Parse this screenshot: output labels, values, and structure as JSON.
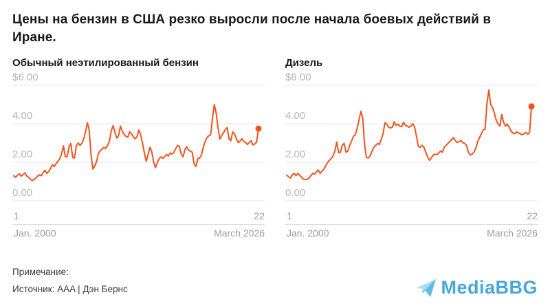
{
  "header": {
    "title": "Цены на бензин в США резко выросли после начала боевых действий в Иране."
  },
  "footer": {
    "note_label": "Примечание:",
    "source": "Источник: AAA | Дэн Бернс"
  },
  "logo": {
    "text": "MediaBBG",
    "icon": "paper-plane-icon",
    "color": "#3ea3d8",
    "icon_color": "#7ec9ec"
  },
  "colors": {
    "line": "#f0531c",
    "grid": "#e4e4e4",
    "tick_label": "#b5b5b5"
  },
  "chart_data": [
    {
      "type": "line",
      "title": "Обычный неэтилированный бензин",
      "ylim": [
        0,
        6
      ],
      "grid": true,
      "line_color": "#f0531c",
      "y_ticks": [
        {
          "label": "$6.00",
          "value": 6
        },
        {
          "label": "4.00",
          "value": 4
        },
        {
          "label": "2.00",
          "value": 2
        },
        {
          "label": "0.00",
          "value": 0
        }
      ],
      "x_axis": {
        "start_day": "1",
        "start_date": "Jan. 2000",
        "end_day": "22",
        "end_date": "March 2026"
      },
      "values": [
        1.3,
        1.22,
        1.32,
        1.4,
        1.28,
        1.35,
        1.45,
        1.3,
        1.22,
        1.12,
        1.05,
        1.1,
        1.18,
        1.28,
        1.35,
        1.3,
        1.48,
        1.58,
        1.42,
        1.52,
        1.68,
        1.88,
        1.78,
        1.92,
        2.05,
        2.18,
        2.45,
        2.85,
        2.3,
        2.28,
        2.78,
        2.98,
        2.25,
        2.22,
        2.85,
        3.0,
        2.88,
        2.98,
        3.2,
        3.6,
        4.05,
        3.7,
        2.4,
        1.65,
        1.8,
        2.05,
        2.45,
        2.6,
        2.68,
        2.78,
        2.72,
        2.88,
        3.1,
        3.65,
        3.9,
        3.55,
        3.25,
        3.4,
        3.88,
        3.6,
        3.45,
        3.35,
        3.3,
        3.58,
        3.48,
        3.32,
        3.22,
        3.32,
        3.68,
        3.42,
        2.98,
        2.48,
        2.05,
        2.4,
        2.78,
        2.55,
        2.02,
        1.72,
        1.98,
        2.18,
        2.28,
        2.2,
        2.3,
        2.4,
        2.32,
        2.48,
        2.42,
        2.52,
        2.7,
        2.88,
        2.82,
        2.42,
        2.28,
        2.65,
        2.8,
        2.62,
        2.58,
        2.52,
        1.92,
        1.78,
        2.18,
        2.22,
        2.38,
        2.78,
        3.08,
        3.28,
        3.38,
        3.42,
        4.3,
        5.0,
        4.55,
        3.8,
        3.2,
        3.4,
        3.52,
        3.7,
        3.8,
        3.22,
        3.12,
        3.58,
        3.48,
        3.22,
        3.02,
        3.1,
        3.22,
        3.08,
        3.02,
        2.92,
        3.02,
        3.12,
        2.9,
        2.95,
        3.05,
        3.75
      ]
    },
    {
      "type": "line",
      "title": "Дизель",
      "ylim": [
        0,
        6
      ],
      "grid": true,
      "line_color": "#f0531c",
      "y_ticks": [
        {
          "label": "$6.00",
          "value": 6
        },
        {
          "label": "4.00",
          "value": 4
        },
        {
          "label": "2.00",
          "value": 2
        },
        {
          "label": "0.00",
          "value": 0
        }
      ],
      "x_axis": {
        "start_day": "1",
        "start_date": "Jan. 2000",
        "end_day": "22",
        "end_date": "March 2026"
      },
      "values": [
        1.32,
        1.25,
        1.18,
        1.35,
        1.42,
        1.3,
        1.42,
        1.32,
        1.22,
        1.12,
        1.1,
        1.12,
        1.18,
        1.3,
        1.42,
        1.38,
        1.5,
        1.6,
        1.42,
        1.52,
        1.62,
        1.8,
        1.98,
        2.1,
        2.2,
        2.32,
        2.58,
        3.05,
        2.5,
        2.52,
        2.88,
        2.98,
        2.52,
        2.58,
        2.88,
        3.1,
        3.35,
        3.42,
        3.75,
        4.2,
        4.65,
        4.3,
        2.9,
        2.25,
        2.22,
        2.32,
        2.58,
        2.78,
        2.88,
        2.98,
        2.92,
        3.18,
        3.48,
        4.05,
        3.98,
        3.82,
        3.78,
        3.82,
        4.1,
        3.92,
        3.98,
        3.88,
        3.85,
        4.08,
        3.92,
        3.88,
        3.82,
        3.88,
        4.0,
        3.82,
        3.35,
        2.82,
        2.78,
        2.88,
        2.78,
        2.52,
        2.28,
        2.1,
        2.22,
        2.38,
        2.42,
        2.4,
        2.48,
        2.58,
        2.52,
        2.78,
        2.88,
        2.98,
        3.08,
        3.18,
        3.28,
        3.12,
        3.02,
        3.08,
        3.12,
        3.02,
        2.98,
        2.88,
        2.52,
        2.38,
        2.42,
        2.52,
        2.72,
        3.08,
        3.28,
        3.48,
        3.68,
        3.72,
        5.05,
        5.75,
        5.0,
        4.85,
        4.55,
        4.18,
        3.98,
        3.88,
        4.48,
        4.08,
        3.88,
        3.98,
        3.82,
        3.62,
        3.52,
        3.48,
        3.58,
        3.52,
        3.48,
        3.42,
        3.48,
        3.55,
        3.45,
        3.55,
        4.9
      ]
    }
  ]
}
